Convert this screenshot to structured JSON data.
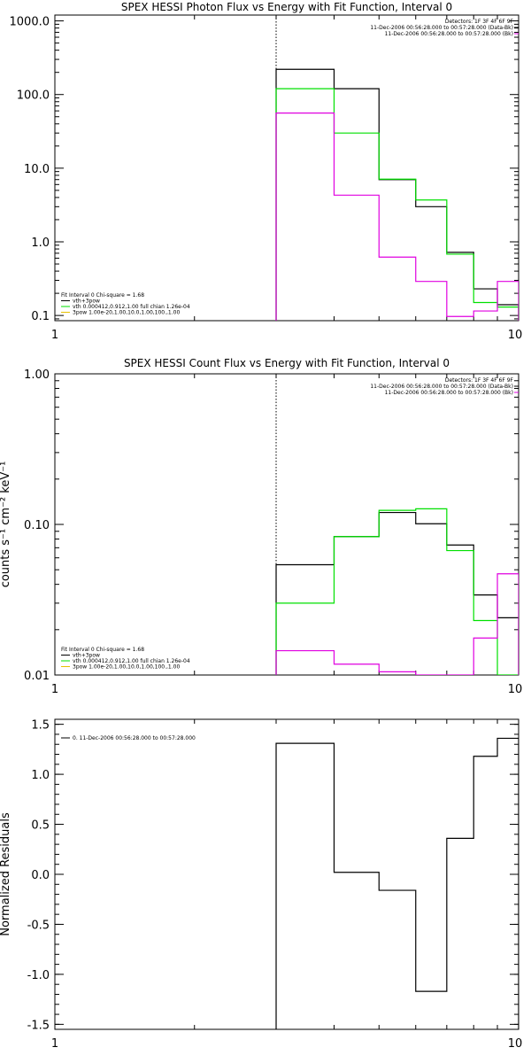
{
  "chart_data": [
    {
      "type": "line",
      "title": "SPEX HESSI Photon Flux vs Energy with Fit Function, Interval 0",
      "xlabel": "",
      "ylabel": "",
      "xscale": "log",
      "yscale": "log",
      "xlim": [
        1,
        10
      ],
      "ylim": [
        0.085,
        1200
      ],
      "xticks": [
        {
          "v": 1,
          "label": "1"
        },
        {
          "v": 10,
          "label": "10"
        }
      ],
      "yticks": [
        {
          "v": 1000,
          "label": "1000.0"
        },
        {
          "v": 100,
          "label": "100.0"
        },
        {
          "v": 10,
          "label": "10.0"
        },
        {
          "v": 1,
          "label": "1.0"
        },
        {
          "v": 0.1,
          "label": "0.1"
        }
      ],
      "vline": 3,
      "header": [
        "Detectors: 1F 3F 4F 6F 9F",
        "11-Dec-2006 00:56:28.000 to 00:57:28.000 (Data-Bk)",
        "11-Dec-2006 00:56:28.000 to 00:57:28.000 (Bk)"
      ],
      "legend": [
        "Fit Interval 0   Chi-square = 1.68",
        "vth+3pow",
        "vth 0.000412,0.912,1.00  full chian 1.26e-04",
        "3pow 1.00e-20,1.00,10.0,1.00,100.,1.00"
      ],
      "series": [
        {
          "name": "Data-Bk",
          "color": "#000000",
          "edges": [
            3,
            4,
            5,
            6,
            7,
            8,
            9,
            10
          ],
          "values": [
            220,
            120,
            7.0,
            3.0,
            0.72,
            0.23,
            0.14
          ]
        },
        {
          "name": "vth+3pow",
          "color": "#00e000",
          "edges": [
            3,
            4,
            5,
            6,
            7,
            8,
            9,
            10
          ],
          "values": [
            120,
            30,
            7.1,
            3.7,
            0.68,
            0.15,
            0.13
          ]
        },
        {
          "name": "Bk",
          "color": "#e000e0",
          "edges": [
            3,
            4,
            5,
            6,
            7,
            8,
            9,
            10
          ],
          "values": [
            56,
            4.3,
            0.62,
            0.29,
            0.097,
            0.115,
            0.29
          ]
        }
      ]
    },
    {
      "type": "line",
      "title": "SPEX HESSI Count Flux vs Energy with Fit Function, Interval 0",
      "xlabel": "",
      "ylabel": "counts s⁻¹ cm⁻² keV⁻¹",
      "xscale": "log",
      "yscale": "log",
      "xlim": [
        1,
        10
      ],
      "ylim": [
        0.01,
        1.0
      ],
      "xticks": [
        {
          "v": 1,
          "label": "1"
        },
        {
          "v": 10,
          "label": "10"
        }
      ],
      "yticks": [
        {
          "v": 1,
          "label": "1.00"
        },
        {
          "v": 0.1,
          "label": "0.10"
        },
        {
          "v": 0.01,
          "label": "0.01"
        }
      ],
      "vline": 3,
      "header": [
        "Detectors: 1F 3F 4F 6F 9F",
        "11-Dec-2006 00:56:28.000 to 00:57:28.000 (Data-Bk)",
        "11-Dec-2006 00:56:28.000 to 00:57:28.000 (Bk)"
      ],
      "legend": [
        "Fit Interval 0   Chi-square = 1.68",
        "vth+3pow",
        "vth 0.000412,0.912,1.00  full chian 1.26e-04",
        "3pow 1.00e-20,1.00,10.0,1.00,100.,1.00"
      ],
      "series": [
        {
          "name": "Data-Bk",
          "color": "#000000",
          "edges": [
            3,
            4,
            5,
            6,
            7,
            8,
            9,
            10
          ],
          "values": [
            0.054,
            0.083,
            0.12,
            0.101,
            0.073,
            0.034,
            0.024
          ]
        },
        {
          "name": "vth+3pow",
          "color": "#00e000",
          "edges": [
            3,
            4,
            5,
            6,
            7,
            8,
            9,
            10
          ],
          "values": [
            0.03,
            0.083,
            0.124,
            0.127,
            0.067,
            0.023,
            0.007
          ]
        },
        {
          "name": "Bk",
          "color": "#e000e0",
          "edges": [
            3,
            4,
            5,
            6,
            7,
            8,
            9,
            10
          ],
          "values": [
            0.0145,
            0.0118,
            0.0105,
            0.01,
            0.0099,
            0.0176,
            0.047
          ]
        }
      ]
    },
    {
      "type": "line",
      "title": "",
      "xlabel": "",
      "ylabel": "Normalized Residuals",
      "xscale": "log",
      "yscale": "linear",
      "xlim": [
        1,
        10
      ],
      "ylim": [
        -1.55,
        1.55
      ],
      "xticks": [
        {
          "v": 1,
          "label": "1"
        },
        {
          "v": 10,
          "label": "10"
        }
      ],
      "yticks": [
        {
          "v": 1.5,
          "label": "1.5"
        },
        {
          "v": 1.0,
          "label": "1.0"
        },
        {
          "v": 0.5,
          "label": "0.5"
        },
        {
          "v": 0.0,
          "label": "0.0"
        },
        {
          "v": -0.5,
          "label": "-0.5"
        },
        {
          "v": -1.0,
          "label": "-1.0"
        },
        {
          "v": -1.5,
          "label": "-1.5"
        }
      ],
      "legend": [
        "0. 11-Dec-2006 00:56:28.000 to 00:57:28.000"
      ],
      "series": [
        {
          "name": "0. 11-Dec-2006 00:56:28.000 to 00:57:28.000",
          "color": "#000000",
          "edges": [
            3,
            4,
            5,
            6,
            7,
            8,
            9,
            10
          ],
          "values": [
            1.31,
            0.02,
            -0.16,
            -1.17,
            0.36,
            1.18,
            1.36
          ]
        }
      ]
    }
  ]
}
